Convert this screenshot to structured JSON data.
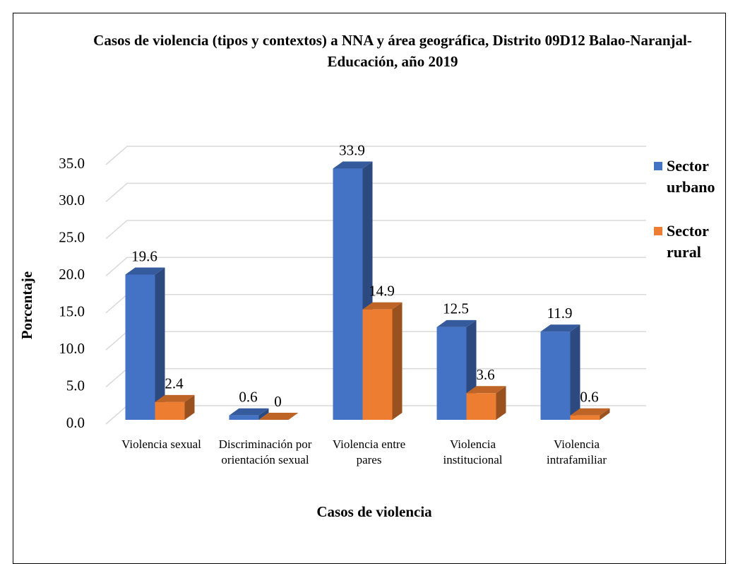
{
  "chart_data": {
    "type": "bar3d",
    "title": "Casos de violencia (tipos y contextos) a NNA y área geográfica, Distrito 09D12 Balao-Naranjal-Educación, año 2019",
    "x_label": "Casos de violencia",
    "y_label": "Porcentaje",
    "categories": [
      "Violencia sexual",
      "Discriminación por orientación sexual",
      "Violencia entre pares",
      "Violencia institucional",
      "Violencia intrafamiliar"
    ],
    "series": [
      {
        "name": "Sector urbano",
        "color": "#4472c4",
        "values": [
          19.6,
          0.6,
          33.9,
          12.5,
          11.9
        ]
      },
      {
        "name": "Sector rural",
        "color": "#ed7d31",
        "values": [
          2.4,
          0,
          14.9,
          3.6,
          0.6
        ]
      }
    ],
    "ylim": [
      0,
      35
    ],
    "yticks": [
      {
        "value": 0,
        "label": "0.0"
      },
      {
        "value": 5,
        "label": "5.0"
      },
      {
        "value": 10,
        "label": "10.0"
      },
      {
        "value": 15,
        "label": "15.0"
      },
      {
        "value": 20,
        "label": "20.0"
      },
      {
        "value": 25,
        "label": "25.0"
      },
      {
        "value": 30,
        "label": "30.0"
      },
      {
        "value": 35,
        "label": "35.0"
      }
    ],
    "grid": true,
    "legend": "right"
  }
}
